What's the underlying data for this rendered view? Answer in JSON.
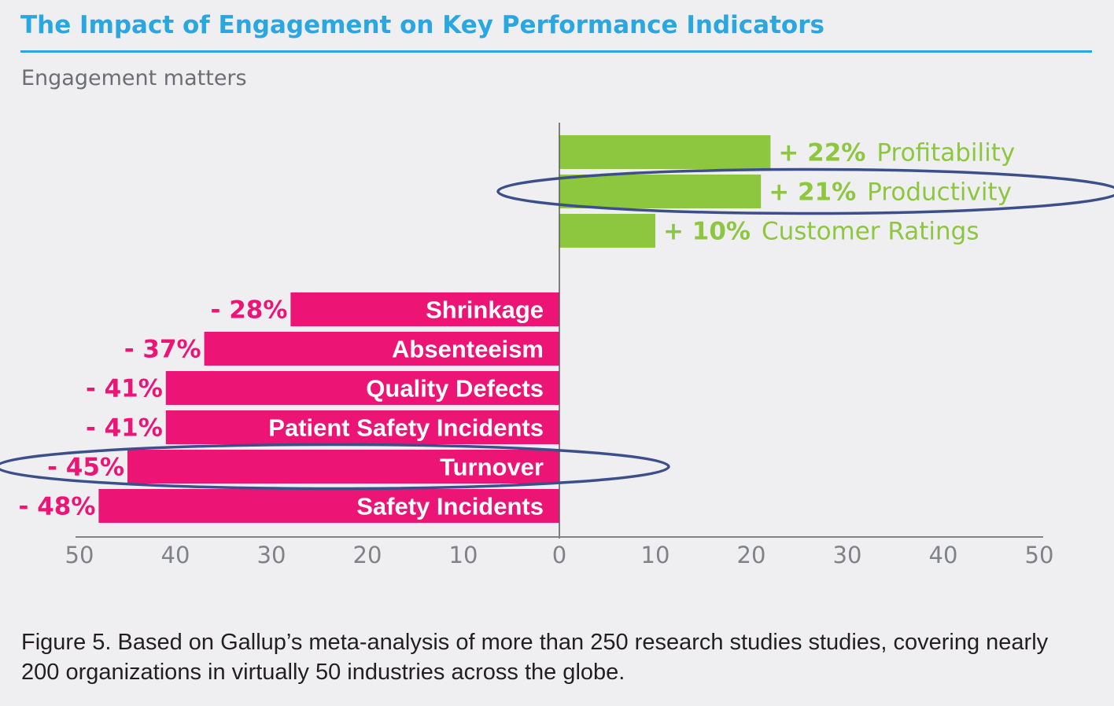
{
  "header": {
    "title": "The Impact of Engagement on Key Performance Indicators",
    "subtitle": "Engagement matters"
  },
  "caption": "Figure 5. Based on Gallup’s meta-analysis of more than 250 research studies studies, covering nearly 200 organizations in virtually 50 industries across the globe.",
  "colors": {
    "positive": "#8dc63f",
    "negative": "#ec1475",
    "title": "#2aa6e0",
    "highlight_ring": "#3d4f8a",
    "axis_text": "#808285"
  },
  "chart_data": {
    "type": "bar",
    "orientation": "horizontal-diverging",
    "title": "",
    "xlabel": "",
    "ylabel": "",
    "xlim": [
      -50,
      50
    ],
    "x_ticks": [
      "50",
      "40",
      "30",
      "20",
      "10",
      "0",
      "10",
      "20",
      "30",
      "40",
      "50"
    ],
    "grid": false,
    "legend": "none",
    "categories": [
      "Profitability",
      "Productivity",
      "Customer Ratings",
      "Shrinkage",
      "Absenteeism",
      "Quality Defects",
      "Patient Safety Incidents",
      "Turnover",
      "Safety Incidents"
    ],
    "values": [
      22,
      21,
      10,
      -28,
      -37,
      -41,
      -41,
      -45,
      -48
    ],
    "value_labels": [
      "+ 22%",
      "+ 21%",
      "+ 10%",
      "- 28%",
      "- 37%",
      "- 41%",
      "- 41%",
      "- 45%",
      "- 48%"
    ],
    "highlighted": [
      "Productivity",
      "Turnover"
    ]
  }
}
